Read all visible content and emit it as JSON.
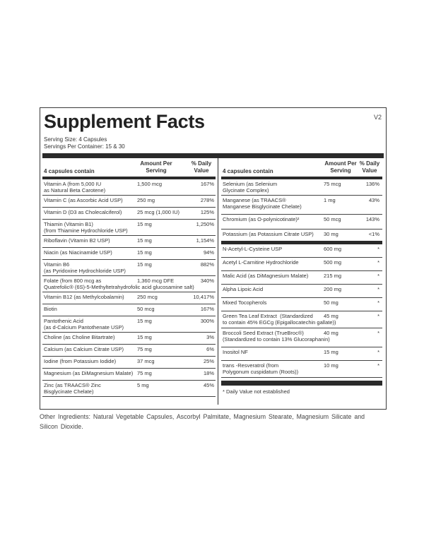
{
  "panel": {
    "title": "Supplement Facts",
    "version": "V2",
    "serving_size": "Serving Size: 4 Capsules",
    "servings_per_container": "Servings Per Container: 15 & 30"
  },
  "left": {
    "header": {
      "name": "4 capsules contain",
      "amount": "Amount Per Serving",
      "dv": "% Daily Value"
    },
    "rows": [
      {
        "name": "Vitamin A (from 5,000 IU\nas Natural Beta Carotene)",
        "amount": "1,500 mcg",
        "dv": "167%"
      },
      {
        "name": "Vitamin C (as Ascorbic Acid USP)",
        "amount": "250 mg",
        "dv": "278%"
      },
      {
        "name": "Vitamin D (D3 as Cholecalciferol)",
        "amount": "25 mcg (1,000 IU)",
        "dv": "125%"
      },
      {
        "name": "Thiamin (Vitamin B1)\n(from Thiamine Hydrochloride USP)",
        "amount": "15 mg",
        "dv": "1,250%"
      },
      {
        "name": "Riboflavin (Vitamin B2 USP)",
        "amount": "15 mg",
        "dv": "1,154%"
      },
      {
        "name": "Niacin (as Niacinamide USP)",
        "amount": "15 mg",
        "dv": "94%"
      },
      {
        "name": "Vitamin B6\n(as Pyridoxine Hydrochloride USP)",
        "amount": "15 mg",
        "dv": "882%"
      },
      {
        "name": "Folate (from 800 mcg as\nQuatrefolic® (6S)-5-Methyltetrahydrofolic acid glucosamine salt)",
        "amount": "1,360 mcg DFE",
        "dv": "340%"
      },
      {
        "name": "Vitamin B12 (as Methylcobalamin)",
        "amount": "250 mcg",
        "dv": "10,417%"
      },
      {
        "name": "Biotin",
        "amount": "50 mcg",
        "dv": "167%"
      },
      {
        "name": "Pantothenic Acid\n(as d-Calcium Pantothenate USP)",
        "amount": "15 mg",
        "dv": "300%"
      },
      {
        "name": "Choline (as Choline Bitartrate)",
        "amount": "15 mg",
        "dv": "3%"
      },
      {
        "name": "Calcium (as Calcium Citrate USP)",
        "amount": "75 mg",
        "dv": "6%"
      },
      {
        "name": "Iodine (from Potassium Iodide)",
        "amount": "37 mcg",
        "dv": "25%"
      },
      {
        "name": "Magnesium (as DiMagnesium Malate)",
        "amount": "75 mg",
        "dv": "18%"
      },
      {
        "name": "Zinc (as TRAACS® Zinc\nBisglycinate Chelate)",
        "amount": "5 mg",
        "dv": "45%"
      }
    ]
  },
  "right": {
    "header": {
      "name": "4 capsules contain",
      "amount": "Amount Per Serving",
      "dv": "% Daily Value"
    },
    "rows": [
      {
        "name": "Selenium (as Selenium\nGlycinate Complex)",
        "amount": "75 mcg",
        "dv": "136%"
      },
      {
        "name": "Manganese (as TRAACS®\nManganese Bisglycinate Chelate)",
        "amount": "1 mg",
        "dv": "43%"
      },
      {
        "name": "Chromium (as O-polynicotinate)²",
        "amount": "50 mcg",
        "dv": "143%"
      },
      {
        "name": "Potassium (as Potassium Citrate USP)",
        "amount": "30 mg",
        "dv": "<1%"
      },
      {
        "name": "N-Acetyl-L-Cysteine USP",
        "amount": "600 mg",
        "dv": "*"
      },
      {
        "name": "Acetyl L-Carnitine Hydrochloride",
        "amount": "500 mg",
        "dv": "*"
      },
      {
        "name": "Malic Acid (as DiMagnesium Malate)",
        "amount": "215 mg",
        "dv": "*"
      },
      {
        "name": "Alpha Lipoic Acid",
        "amount": "200 mg",
        "dv": "*"
      },
      {
        "name": "Mixed Tocopherols",
        "amount": "50 mg",
        "dv": "*"
      },
      {
        "name": "Green Tea Leaf Extract  (Standardized\nto contain 45% EGCg (Epigallocatechin gallate))",
        "amount": "45 mg",
        "dv": "*"
      },
      {
        "name": "Broccoli Seed Extract (TrueBroc®)\n(Standardized to contain 13% Glucoraphanin)",
        "amount": "40 mg",
        "dv": "*"
      },
      {
        "name": "Inositol NF",
        "amount": "15 mg",
        "dv": "*"
      },
      {
        "name": "trans -Resveratrol (from\nPolygonum cuspidatum (Roots))",
        "amount": "10 mg",
        "dv": "*"
      }
    ],
    "footnote": "* Daily Value not established"
  },
  "other_ingredients": "Other Ingredients: Natural Vegetable Capsules, Ascorbyl Palmitate, Magnesium Stearate, Magnesium Silicate and Silicon Dioxide."
}
